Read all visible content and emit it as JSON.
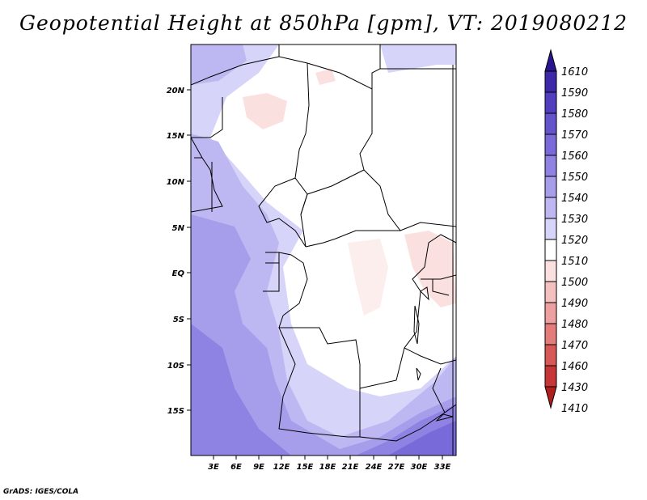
{
  "title": "Geopotential Height at 850hPa [gpm], VT: 2019080212",
  "credit": "GrADS: IGES/COLA",
  "map": {
    "lat_labels": [
      "20N",
      "15N",
      "10N",
      "5N",
      "EQ",
      "5S",
      "10S",
      "15S"
    ],
    "lon_labels": [
      "3E",
      "6E",
      "9E",
      "12E",
      "15E",
      "18E",
      "21E",
      "24E",
      "27E",
      "30E",
      "33E"
    ]
  },
  "colorbar": {
    "levels": [
      "1610",
      "1590",
      "1580",
      "1570",
      "1560",
      "1550",
      "1540",
      "1530",
      "1520",
      "1510",
      "1500",
      "1490",
      "1480",
      "1470",
      "1460",
      "1430",
      "1410"
    ],
    "colors": [
      "#2a1590",
      "#3c28a8",
      "#4f3ebd",
      "#6354cc",
      "#786ad8",
      "#8e82e2",
      "#a69deb",
      "#bdb8f2",
      "#d6d4f8",
      "#ffffff",
      "#fbe0e0",
      "#f5c0c0",
      "#eea0a0",
      "#e57c7c",
      "#d85858",
      "#c63636",
      "#b01e1e"
    ]
  }
}
